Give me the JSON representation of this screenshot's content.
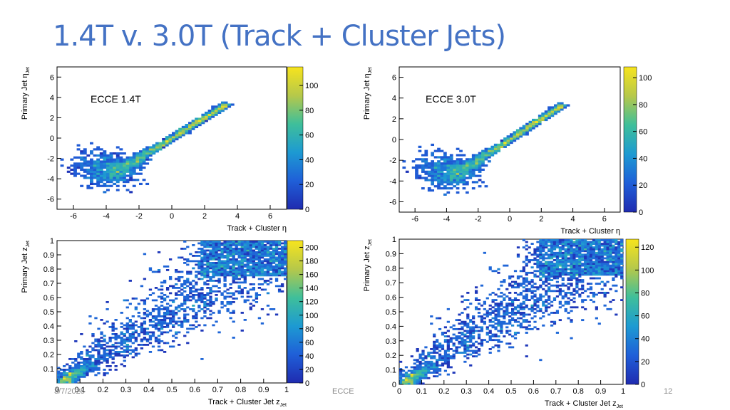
{
  "slide": {
    "title": "1.4T v. 3.0T (Track + Cluster Jets)",
    "date": "3/7/2025",
    "footer_center": "ECCE",
    "page_number": "12"
  },
  "chart_data": [
    {
      "type": "heatmap",
      "id": "eta-14T",
      "annotation": "ECCE 1.4T",
      "xlabel": "Track + Cluster η",
      "ylabel": "Primary Jet η_Jet",
      "xlim": [
        -7,
        7
      ],
      "ylim": [
        -7,
        7
      ],
      "xticks": [
        -6,
        -4,
        -2,
        0,
        2,
        4,
        6
      ],
      "yticks": [
        -6,
        -4,
        -2,
        0,
        2,
        4,
        6
      ],
      "colorbar": {
        "min": 0,
        "max": 115,
        "ticks": [
          0,
          20,
          40,
          60,
          80,
          100
        ]
      },
      "distribution": "correlated band along y = x from about -4 to 3.5 with diffuse low-η cluster near (-4,-3)"
    },
    {
      "type": "heatmap",
      "id": "eta-30T",
      "annotation": "ECCE 3.0T",
      "xlabel": "Track + Cluster η",
      "ylabel": "Primary Jet η_Jet",
      "xlim": [
        -7,
        7
      ],
      "ylim": [
        -7,
        7
      ],
      "xticks": [
        -6,
        -4,
        -2,
        0,
        2,
        4,
        6
      ],
      "yticks": [
        -6,
        -4,
        -2,
        0,
        2,
        4,
        6
      ],
      "colorbar": {
        "min": 0,
        "max": 108,
        "ticks": [
          0,
          20,
          40,
          60,
          80,
          100
        ]
      },
      "distribution": "correlated band along y = x from about -4 to 3 with diffuse low-η cluster near (-4,-3)"
    },
    {
      "type": "heatmap",
      "id": "z-14T",
      "xlabel": "Track + Cluster Jet z_Jet",
      "ylabel": "Primary Jet z_Jet",
      "xlim": [
        0,
        1
      ],
      "ylim": [
        0,
        1
      ],
      "xticks": [
        0,
        0.1,
        0.2,
        0.3,
        0.4,
        0.5,
        0.6,
        0.7,
        0.8,
        0.9,
        1
      ],
      "yticks": [
        0.1,
        0.2,
        0.3,
        0.4,
        0.5,
        0.6,
        0.7,
        0.8,
        0.9,
        1
      ],
      "colorbar": {
        "min": 0,
        "max": 210,
        "ticks": [
          0,
          20,
          40,
          60,
          80,
          100,
          120,
          140,
          160,
          180,
          200
        ]
      },
      "distribution": "broad correlation along y = x, hot spot near origin, dense region at upper right"
    },
    {
      "type": "heatmap",
      "id": "z-30T",
      "xlabel": "Track + Cluster Jet z_Jet",
      "ylabel": "Primary Jet z_Jet",
      "xlim": [
        0,
        1
      ],
      "ylim": [
        0,
        1
      ],
      "xticks": [
        0,
        0.1,
        0.2,
        0.3,
        0.4,
        0.5,
        0.6,
        0.7,
        0.8,
        0.9,
        1
      ],
      "yticks": [
        0,
        0.1,
        0.2,
        0.3,
        0.4,
        0.5,
        0.6,
        0.7,
        0.8,
        0.9,
        1
      ],
      "colorbar": {
        "min": 0,
        "max": 127,
        "ticks": [
          0,
          20,
          40,
          60,
          80,
          100,
          120
        ]
      },
      "distribution": "broad correlation along y = x, hot spot near origin, dense region at upper right"
    }
  ]
}
